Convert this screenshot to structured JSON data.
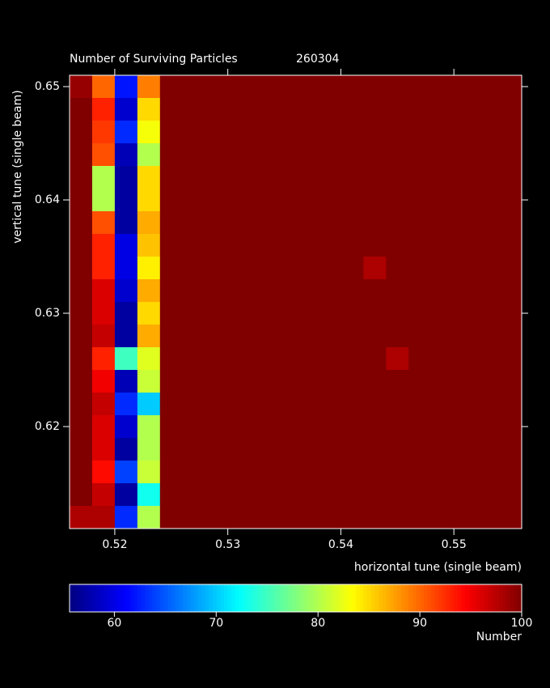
{
  "chart_data": {
    "type": "heatmap",
    "title": "Number of Surviving Particles",
    "subtitle": "260304",
    "xlabel": "horizontal tune (single beam)",
    "ylabel": "vertical tune (single beam)",
    "colorbar_label": "Number",
    "x": [
      0.517,
      0.519,
      0.521,
      0.523,
      0.525,
      0.527,
      0.529,
      0.531,
      0.533,
      0.535,
      0.537,
      0.539,
      0.541,
      0.543,
      0.545,
      0.547,
      0.549,
      0.551,
      0.553,
      0.555
    ],
    "y": [
      0.65,
      0.648,
      0.646,
      0.644,
      0.642,
      0.64,
      0.638,
      0.636,
      0.634,
      0.632,
      0.63,
      0.628,
      0.626,
      0.624,
      0.622,
      0.62,
      0.618,
      0.616,
      0.614,
      0.612
    ],
    "z": [
      [
        99,
        90,
        62,
        89,
        100,
        100,
        100,
        100,
        100,
        100,
        100,
        100,
        100,
        100,
        100,
        100,
        100,
        100,
        100,
        100
      ],
      [
        100,
        93,
        59,
        85,
        100,
        100,
        100,
        100,
        100,
        100,
        100,
        100,
        100,
        100,
        100,
        100,
        100,
        100,
        100,
        100
      ],
      [
        100,
        92,
        63,
        83,
        100,
        100,
        100,
        100,
        100,
        100,
        100,
        100,
        100,
        100,
        100,
        100,
        100,
        100,
        100,
        100
      ],
      [
        100,
        91,
        58,
        80,
        100,
        100,
        100,
        100,
        100,
        100,
        100,
        100,
        100,
        100,
        100,
        100,
        100,
        100,
        100,
        100
      ],
      [
        100,
        80,
        57,
        85,
        100,
        100,
        100,
        100,
        100,
        100,
        100,
        100,
        100,
        100,
        100,
        100,
        100,
        100,
        100,
        100
      ],
      [
        100,
        80,
        57,
        85,
        100,
        100,
        100,
        100,
        100,
        100,
        100,
        100,
        100,
        100,
        100,
        100,
        100,
        100,
        100,
        100
      ],
      [
        100,
        91,
        57,
        87,
        100,
        100,
        100,
        100,
        100,
        100,
        100,
        100,
        100,
        100,
        100,
        100,
        100,
        100,
        100,
        100
      ],
      [
        100,
        93,
        60,
        86,
        100,
        100,
        100,
        100,
        100,
        100,
        100,
        100,
        100,
        100,
        100,
        100,
        100,
        100,
        100,
        100
      ],
      [
        100,
        93,
        60,
        84,
        100,
        100,
        100,
        100,
        100,
        100,
        100,
        100,
        100,
        98,
        100,
        100,
        100,
        100,
        100,
        100
      ],
      [
        100,
        96,
        59,
        87,
        100,
        100,
        100,
        100,
        100,
        100,
        100,
        100,
        100,
        100,
        100,
        100,
        100,
        100,
        100,
        100
      ],
      [
        100,
        96,
        57,
        85,
        100,
        100,
        100,
        100,
        100,
        100,
        100,
        100,
        100,
        100,
        100,
        100,
        100,
        100,
        100,
        100
      ],
      [
        100,
        97,
        57,
        87,
        100,
        100,
        100,
        100,
        100,
        100,
        100,
        100,
        100,
        100,
        100,
        100,
        100,
        100,
        100,
        100
      ],
      [
        100,
        93,
        75,
        82,
        100,
        100,
        100,
        100,
        100,
        100,
        100,
        100,
        100,
        100,
        98,
        100,
        100,
        100,
        100,
        100
      ],
      [
        100,
        95,
        58,
        81,
        100,
        100,
        100,
        100,
        100,
        100,
        100,
        100,
        100,
        100,
        100,
        100,
        100,
        100,
        100,
        100
      ],
      [
        100,
        97,
        63,
        70,
        100,
        100,
        100,
        100,
        100,
        100,
        100,
        100,
        100,
        100,
        100,
        100,
        100,
        100,
        100,
        100
      ],
      [
        100,
        96,
        59,
        80,
        100,
        100,
        100,
        100,
        100,
        100,
        100,
        100,
        100,
        100,
        100,
        100,
        100,
        100,
        100,
        100
      ],
      [
        100,
        96,
        57,
        80,
        100,
        100,
        100,
        100,
        100,
        100,
        100,
        100,
        100,
        100,
        100,
        100,
        100,
        100,
        100,
        100
      ],
      [
        100,
        94,
        64,
        81,
        100,
        100,
        100,
        100,
        100,
        100,
        100,
        100,
        100,
        100,
        100,
        100,
        100,
        100,
        100,
        100
      ],
      [
        100,
        97,
        57,
        73,
        100,
        100,
        100,
        100,
        100,
        100,
        100,
        100,
        100,
        100,
        100,
        100,
        100,
        100,
        100,
        100
      ],
      [
        98,
        98,
        63,
        80,
        100,
        100,
        100,
        100,
        100,
        100,
        100,
        100,
        100,
        100,
        100,
        100,
        100,
        100,
        100,
        100
      ]
    ],
    "xlim": [
      0.516,
      0.556
    ],
    "ylim": [
      0.611,
      0.651
    ],
    "xticks": [
      0.52,
      0.53,
      0.54,
      0.55
    ],
    "yticks": [
      0.62,
      0.63,
      0.64,
      0.65
    ],
    "clim": [
      55.6,
      100
    ],
    "cticks": [
      60,
      70,
      80,
      90,
      100
    ],
    "colormap": "jet"
  }
}
